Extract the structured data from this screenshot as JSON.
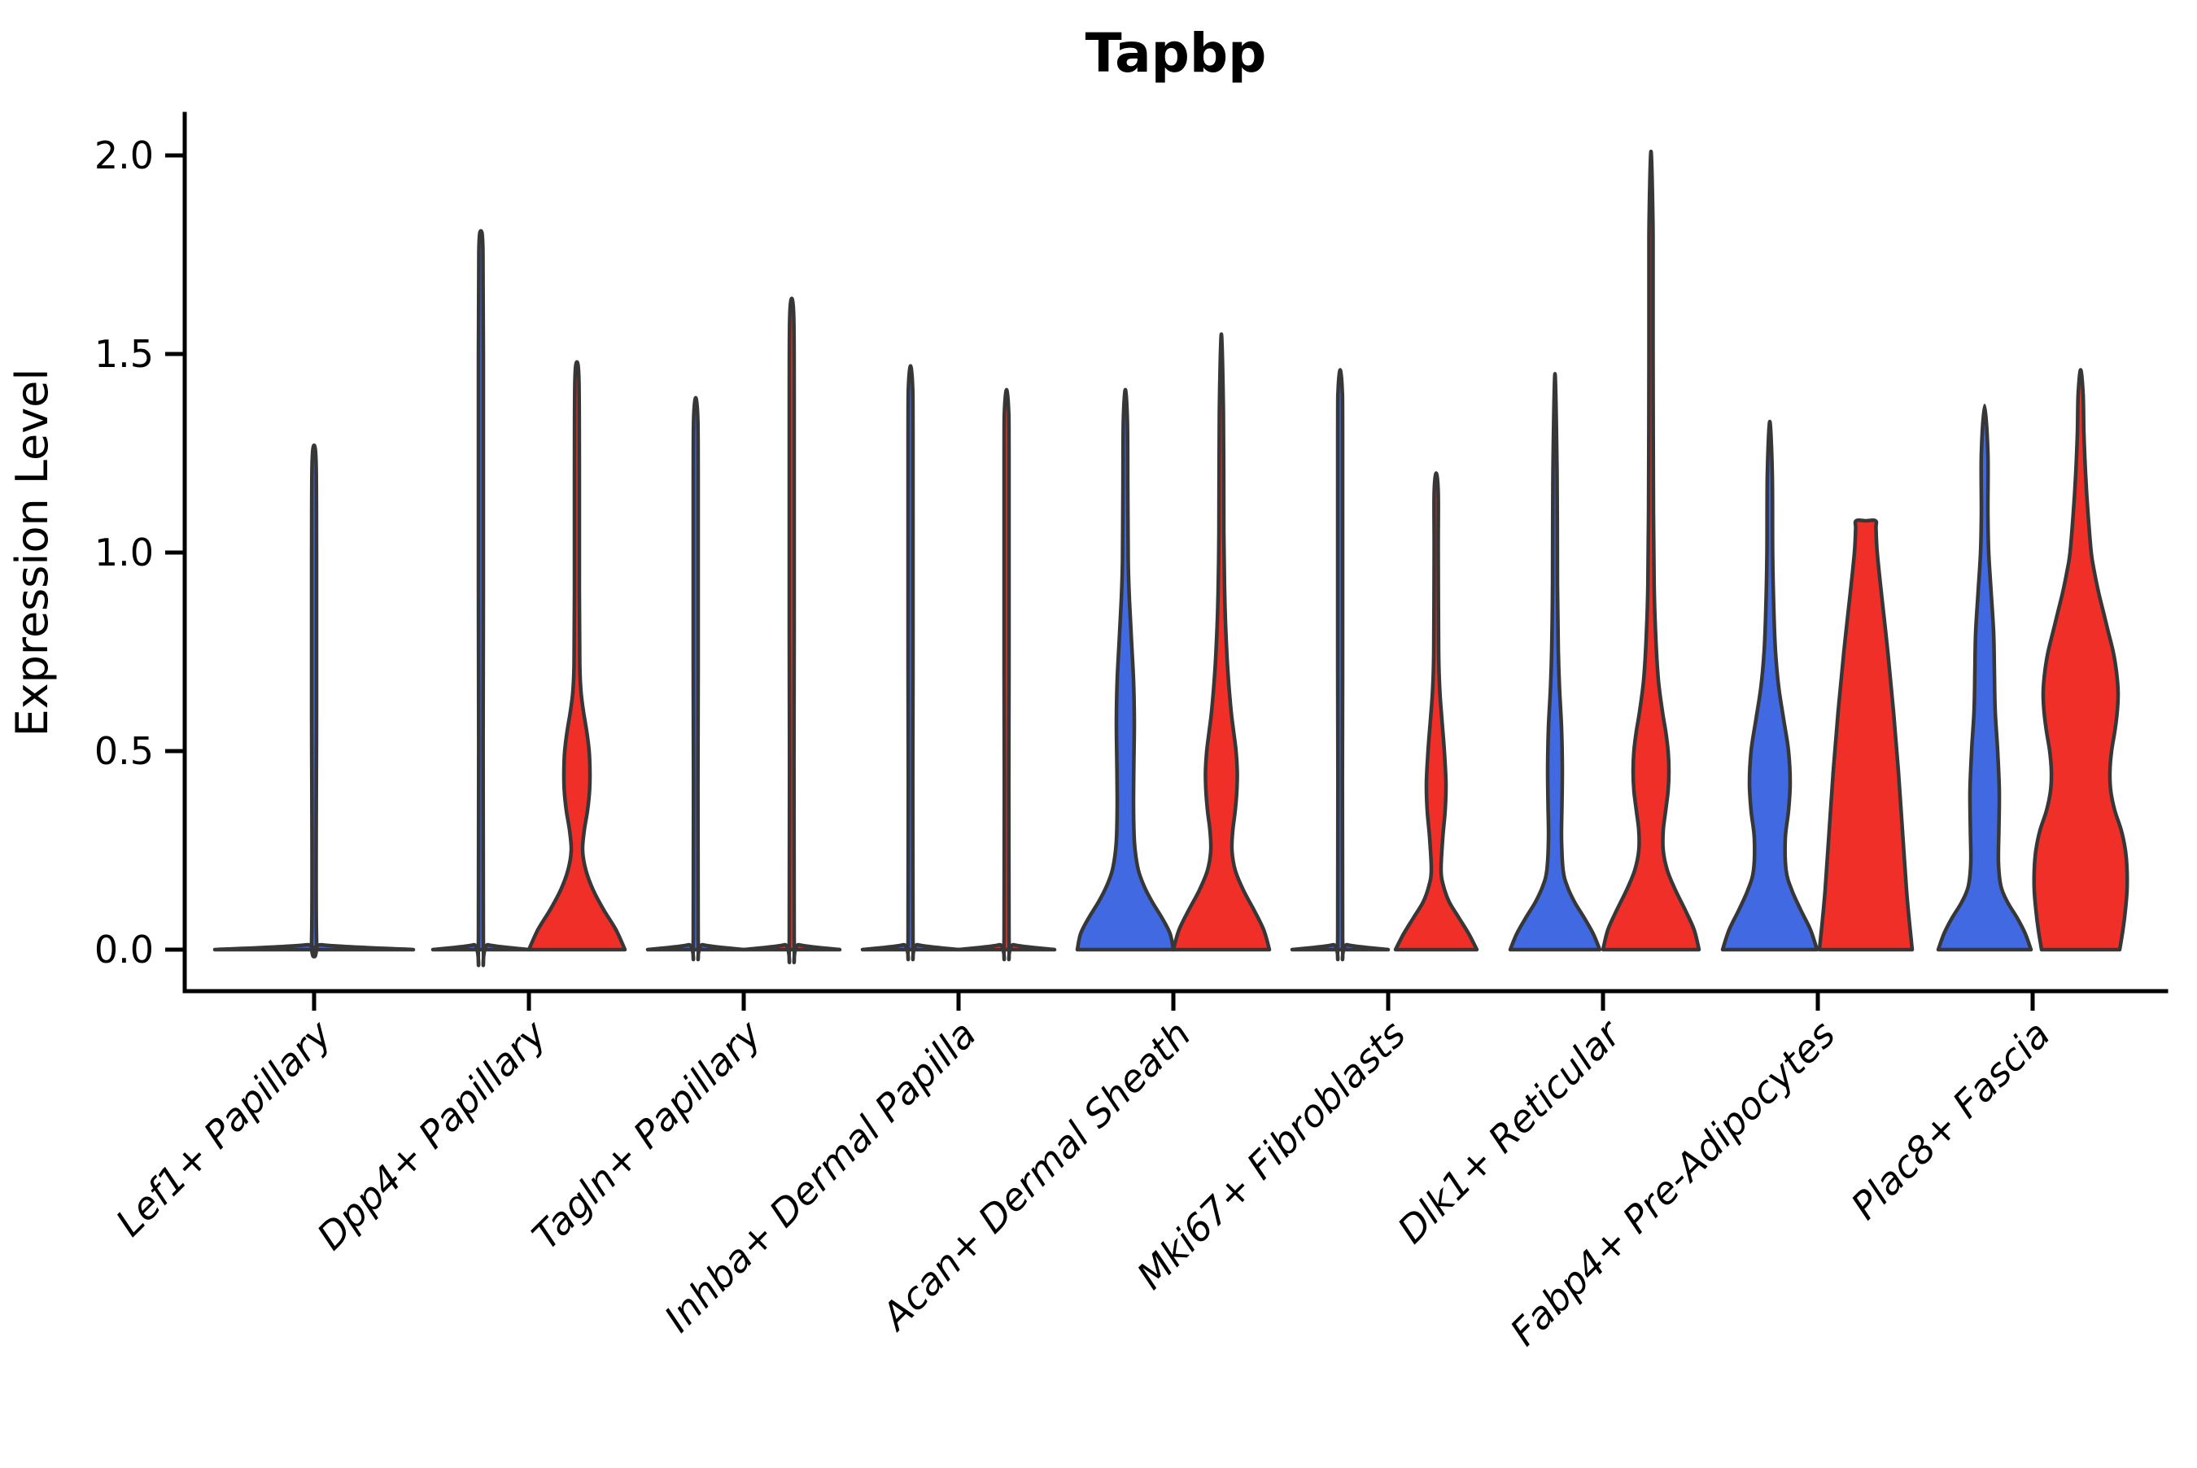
{
  "chart_data": {
    "type": "violin",
    "title": "Tapbp",
    "ylabel": "Expression Level",
    "xlabel": "",
    "ylim": [
      -0.09,
      2.2
    ],
    "yticks": [
      "0.0",
      "0.5",
      "1.0",
      "1.5",
      "2.0"
    ],
    "ytick_values": [
      0,
      0.5,
      1.0,
      1.5,
      2.0
    ],
    "grid": false,
    "legend_position": "none",
    "categories": [
      "Lef1+ Papillary",
      "Dpp4+ Papillary",
      "Tagln+ Papillary",
      "Inhba+ Dermal Papilla",
      "Acan+ Dermal Sheath",
      "Mki67+ Fibroblasts",
      "Dlk1+ Reticular",
      "Fabp4+ Pre-Adipocytes",
      "Plac8+ Fascia"
    ],
    "colors": {
      "blue": "#4169E1",
      "red": "#F03028",
      "outline": "#373737",
      "axis": "#000000"
    },
    "violins": [
      {
        "category_index": 0,
        "category": "Lef1+ Papillary",
        "split": "full",
        "fill": "blue",
        "peak": 1.27,
        "profile": [
          [
            0,
            122
          ],
          [
            0.012,
            10
          ],
          [
            0.03,
            3
          ],
          [
            0.6,
            3
          ],
          [
            1.0,
            3
          ],
          [
            1.22,
            2.5
          ],
          [
            1.27,
            0
          ]
        ]
      },
      {
        "category_index": 1,
        "category": "Dpp4+ Papillary",
        "split": "blue",
        "fill": "blue",
        "peak": 1.81,
        "profile": [
          [
            0,
            59
          ],
          [
            0.012,
            9
          ],
          [
            0.03,
            3
          ],
          [
            0.9,
            3
          ],
          [
            1.5,
            3
          ],
          [
            1.76,
            2.5
          ],
          [
            1.81,
            0
          ]
        ]
      },
      {
        "category_index": 1,
        "category": "Dpp4+ Papillary",
        "split": "red",
        "fill": "red",
        "peak": 1.48,
        "profile": [
          [
            0,
            59
          ],
          [
            0.05,
            48
          ],
          [
            0.1,
            33
          ],
          [
            0.15,
            20
          ],
          [
            0.2,
            11
          ],
          [
            0.25,
            7
          ],
          [
            0.3,
            9
          ],
          [
            0.35,
            13
          ],
          [
            0.4,
            15.5
          ],
          [
            0.45,
            16
          ],
          [
            0.5,
            15
          ],
          [
            0.55,
            12
          ],
          [
            0.6,
            8
          ],
          [
            0.65,
            5
          ],
          [
            0.72,
            3.5
          ],
          [
            0.9,
            3
          ],
          [
            1.2,
            3
          ],
          [
            1.43,
            2.5
          ],
          [
            1.48,
            0
          ]
        ]
      },
      {
        "category_index": 2,
        "category": "Tagln+ Papillary",
        "split": "blue",
        "fill": "blue",
        "peak": 1.39,
        "profile": [
          [
            0,
            59
          ],
          [
            0.012,
            9
          ],
          [
            0.03,
            3
          ],
          [
            0.7,
            3
          ],
          [
            1.2,
            3
          ],
          [
            1.34,
            2.5
          ],
          [
            1.39,
            0
          ]
        ]
      },
      {
        "category_index": 2,
        "category": "Tagln+ Papillary",
        "split": "red",
        "fill": "red",
        "peak": 1.64,
        "profile": [
          [
            0,
            59
          ],
          [
            0.012,
            9
          ],
          [
            0.03,
            3
          ],
          [
            0.8,
            3
          ],
          [
            1.4,
            3
          ],
          [
            1.59,
            2.5
          ],
          [
            1.64,
            0
          ]
        ]
      },
      {
        "category_index": 3,
        "category": "Inhba+ Dermal Papilla",
        "split": "blue",
        "fill": "blue",
        "peak": 1.47,
        "profile": [
          [
            0,
            59
          ],
          [
            0.012,
            9
          ],
          [
            0.03,
            3
          ],
          [
            0.7,
            3
          ],
          [
            1.3,
            3
          ],
          [
            1.42,
            2.5
          ],
          [
            1.47,
            0
          ]
        ]
      },
      {
        "category_index": 3,
        "category": "Inhba+ Dermal Papilla",
        "split": "red",
        "fill": "red",
        "peak": 1.41,
        "profile": [
          [
            0,
            59
          ],
          [
            0.012,
            9
          ],
          [
            0.03,
            3
          ],
          [
            0.7,
            3
          ],
          [
            1.25,
            3
          ],
          [
            1.36,
            2.5
          ],
          [
            1.41,
            0
          ]
        ]
      },
      {
        "category_index": 4,
        "category": "Acan+ Dermal Sheath",
        "split": "blue",
        "fill": "blue",
        "peak": 1.41,
        "profile": [
          [
            0,
            59
          ],
          [
            0.04,
            55
          ],
          [
            0.08,
            45
          ],
          [
            0.12,
            33
          ],
          [
            0.16,
            23
          ],
          [
            0.2,
            16
          ],
          [
            0.25,
            12
          ],
          [
            0.3,
            10.5
          ],
          [
            0.38,
            10
          ],
          [
            0.48,
            10.5
          ],
          [
            0.58,
            11
          ],
          [
            0.68,
            10
          ],
          [
            0.78,
            7.5
          ],
          [
            0.88,
            5
          ],
          [
            0.98,
            3.5
          ],
          [
            1.15,
            3
          ],
          [
            1.33,
            2.5
          ],
          [
            1.41,
            0
          ]
        ]
      },
      {
        "category_index": 4,
        "category": "Acan+ Dermal Sheath",
        "split": "red",
        "fill": "red",
        "peak": 1.55,
        "profile": [
          [
            0,
            59
          ],
          [
            0.05,
            52
          ],
          [
            0.1,
            40
          ],
          [
            0.15,
            27
          ],
          [
            0.2,
            17
          ],
          [
            0.25,
            13
          ],
          [
            0.3,
            14
          ],
          [
            0.35,
            17
          ],
          [
            0.4,
            19
          ],
          [
            0.45,
            19.5
          ],
          [
            0.5,
            18
          ],
          [
            0.55,
            15
          ],
          [
            0.6,
            12
          ],
          [
            0.7,
            8
          ],
          [
            0.8,
            5.5
          ],
          [
            0.9,
            4
          ],
          [
            1.05,
            3
          ],
          [
            1.35,
            2.5
          ],
          [
            1.55,
            0
          ]
        ]
      },
      {
        "category_index": 5,
        "category": "Mki67+ Fibroblasts",
        "split": "blue",
        "fill": "blue",
        "peak": 1.46,
        "profile": [
          [
            0,
            59
          ],
          [
            0.012,
            9
          ],
          [
            0.03,
            3
          ],
          [
            0.7,
            3
          ],
          [
            1.3,
            3
          ],
          [
            1.41,
            2.5
          ],
          [
            1.46,
            0
          ]
        ]
      },
      {
        "category_index": 5,
        "category": "Mki67+ Fibroblasts",
        "split": "red",
        "fill": "red",
        "peak": 1.2,
        "profile": [
          [
            0,
            50
          ],
          [
            0.04,
            40
          ],
          [
            0.08,
            28
          ],
          [
            0.12,
            16
          ],
          [
            0.16,
            9
          ],
          [
            0.2,
            6
          ],
          [
            0.28,
            8
          ],
          [
            0.35,
            11
          ],
          [
            0.42,
            12
          ],
          [
            0.5,
            10
          ],
          [
            0.58,
            7
          ],
          [
            0.65,
            4.5
          ],
          [
            0.75,
            3
          ],
          [
            1.0,
            2.5
          ],
          [
            1.15,
            2.5
          ],
          [
            1.2,
            0
          ]
        ]
      },
      {
        "category_index": 6,
        "category": "Dlk1+ Reticular",
        "split": "blue",
        "fill": "blue",
        "peak": 1.45,
        "profile": [
          [
            0,
            55
          ],
          [
            0.04,
            47
          ],
          [
            0.08,
            36
          ],
          [
            0.12,
            24
          ],
          [
            0.16,
            15
          ],
          [
            0.2,
            10
          ],
          [
            0.28,
            8
          ],
          [
            0.36,
            8.5
          ],
          [
            0.46,
            9
          ],
          [
            0.56,
            8
          ],
          [
            0.66,
            5.5
          ],
          [
            0.76,
            4
          ],
          [
            0.92,
            3
          ],
          [
            1.2,
            2.5
          ],
          [
            1.45,
            0
          ]
        ]
      },
      {
        "category_index": 6,
        "category": "Dlk1+ Reticular",
        "split": "red",
        "fill": "red",
        "peak": 2.01,
        "profile": [
          [
            0,
            59
          ],
          [
            0.05,
            53
          ],
          [
            0.1,
            42
          ],
          [
            0.15,
            30
          ],
          [
            0.2,
            20
          ],
          [
            0.25,
            15
          ],
          [
            0.3,
            15
          ],
          [
            0.35,
            18
          ],
          [
            0.4,
            21
          ],
          [
            0.45,
            22
          ],
          [
            0.5,
            21
          ],
          [
            0.55,
            18
          ],
          [
            0.6,
            14
          ],
          [
            0.68,
            9
          ],
          [
            0.78,
            6
          ],
          [
            0.9,
            4
          ],
          [
            1.1,
            3
          ],
          [
            1.5,
            2.5
          ],
          [
            1.8,
            2.5
          ],
          [
            2.01,
            0
          ]
        ]
      },
      {
        "category_index": 7,
        "category": "Fabp4+ Pre-Adipocytes",
        "split": "blue",
        "fill": "blue",
        "peak": 1.33,
        "profile": [
          [
            0,
            58
          ],
          [
            0.05,
            50
          ],
          [
            0.1,
            38
          ],
          [
            0.15,
            27
          ],
          [
            0.2,
            20
          ],
          [
            0.28,
            19
          ],
          [
            0.35,
            23
          ],
          [
            0.42,
            25
          ],
          [
            0.5,
            23
          ],
          [
            0.58,
            17
          ],
          [
            0.66,
            11
          ],
          [
            0.75,
            7
          ],
          [
            0.85,
            5
          ],
          [
            1.0,
            3.5
          ],
          [
            1.2,
            3
          ],
          [
            1.33,
            0
          ]
        ]
      },
      {
        "category_index": 7,
        "category": "Fabp4+ Pre-Adipocytes",
        "split": "red",
        "fill": "red",
        "peak": 1.08,
        "profile": [
          [
            0,
            57
          ],
          [
            0.06,
            54
          ],
          [
            0.15,
            50
          ],
          [
            0.3,
            45
          ],
          [
            0.45,
            40
          ],
          [
            0.6,
            34
          ],
          [
            0.75,
            27
          ],
          [
            0.9,
            19
          ],
          [
            1.0,
            14
          ],
          [
            1.06,
            12.5
          ],
          [
            1.08,
            12
          ],
          [
            1.08,
            0
          ]
        ]
      },
      {
        "category_index": 8,
        "category": "Plac8+ Fascia",
        "split": "blue",
        "fill": "blue",
        "peak": 1.37,
        "profile": [
          [
            0,
            57
          ],
          [
            0.04,
            50
          ],
          [
            0.08,
            40
          ],
          [
            0.12,
            28
          ],
          [
            0.16,
            20
          ],
          [
            0.22,
            17
          ],
          [
            0.3,
            17.5
          ],
          [
            0.4,
            18
          ],
          [
            0.5,
            16
          ],
          [
            0.6,
            13
          ],
          [
            0.7,
            12
          ],
          [
            0.8,
            11
          ],
          [
            0.9,
            8
          ],
          [
            1.0,
            5
          ],
          [
            1.1,
            4
          ],
          [
            1.25,
            4
          ],
          [
            1.37,
            0
          ]
        ]
      },
      {
        "category_index": 8,
        "category": "Plac8+ Fascia",
        "split": "red",
        "fill": "red",
        "peak": 1.46,
        "profile": [
          [
            0,
            48
          ],
          [
            0.05,
            52
          ],
          [
            0.1,
            55
          ],
          [
            0.15,
            57
          ],
          [
            0.2,
            57
          ],
          [
            0.25,
            55
          ],
          [
            0.3,
            50
          ],
          [
            0.35,
            42
          ],
          [
            0.4,
            37
          ],
          [
            0.45,
            36
          ],
          [
            0.5,
            38
          ],
          [
            0.55,
            42
          ],
          [
            0.6,
            45
          ],
          [
            0.65,
            46
          ],
          [
            0.7,
            44
          ],
          [
            0.75,
            40
          ],
          [
            0.8,
            34
          ],
          [
            0.85,
            28
          ],
          [
            0.9,
            22
          ],
          [
            0.95,
            17
          ],
          [
            1.0,
            13
          ],
          [
            1.1,
            9
          ],
          [
            1.2,
            6
          ],
          [
            1.3,
            4
          ],
          [
            1.4,
            3
          ],
          [
            1.46,
            0
          ]
        ]
      }
    ]
  }
}
